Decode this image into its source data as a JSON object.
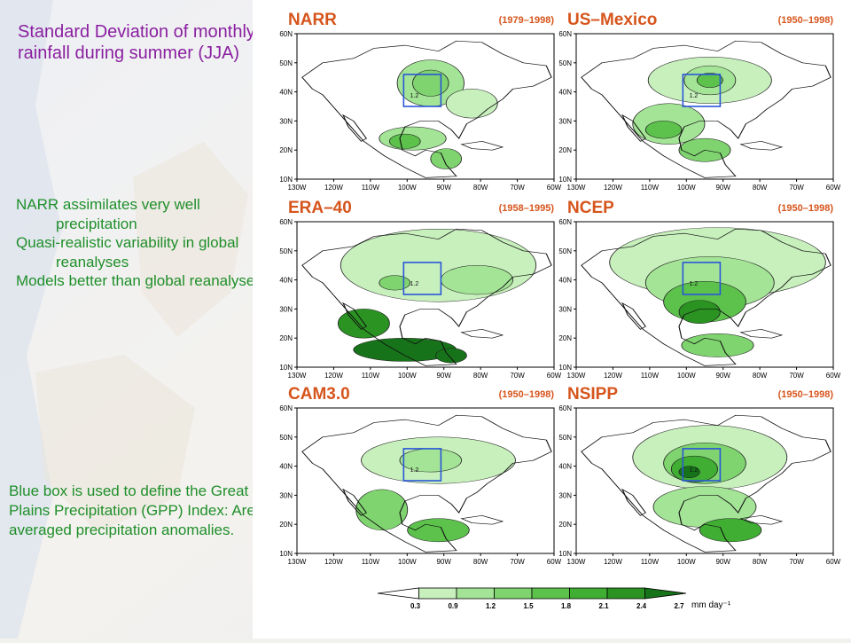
{
  "slide": {
    "title": "Standard Deviation of monthly rainfall during summer (JJA)",
    "bullets": [
      "NARR assimilates very well precipitation",
      "Quasi-realistic variability in global reanalyses",
      "Models better than global reanalyses"
    ],
    "note": "Blue box is used to define the Great Plains Precipitation (GPP) Index: Area-averaged precipitation anomalies."
  },
  "maps": {
    "lat_labels": [
      "60N",
      "50N",
      "40N",
      "30N",
      "20N",
      "10N"
    ],
    "lon_labels": [
      "130W",
      "120W",
      "110W",
      "100W",
      "90W",
      "80W",
      "70W",
      "60W"
    ],
    "box_label": "1.2",
    "panels": [
      {
        "name": "NARR",
        "period": "(1979–1998)"
      },
      {
        "name": "US–Mexico",
        "period": "(1950–1998)"
      },
      {
        "name": "ERA–40",
        "period": "(1958–1995)"
      },
      {
        "name": "NCEP",
        "period": "(1950–1998)"
      },
      {
        "name": "CAM3.0",
        "period": "(1950–1998)"
      },
      {
        "name": "NSIPP",
        "period": "(1950–1998)"
      }
    ]
  },
  "colorbar": {
    "levels": [
      "0.3",
      "0.9",
      "1.2",
      "1.5",
      "1.8",
      "2.1",
      "2.4",
      "2.7"
    ],
    "units": "mm  day⁻¹",
    "colors": [
      "#ffffff",
      "#c8f0bd",
      "#a4e496",
      "#7fd46f",
      "#5cc24c",
      "#3fae33",
      "#2a9322",
      "#17731a"
    ]
  },
  "colors": {
    "title": "#8a1fa0",
    "text": "#1f8f2a",
    "panel_title": "#d6551c",
    "box": "#2a55d8"
  }
}
